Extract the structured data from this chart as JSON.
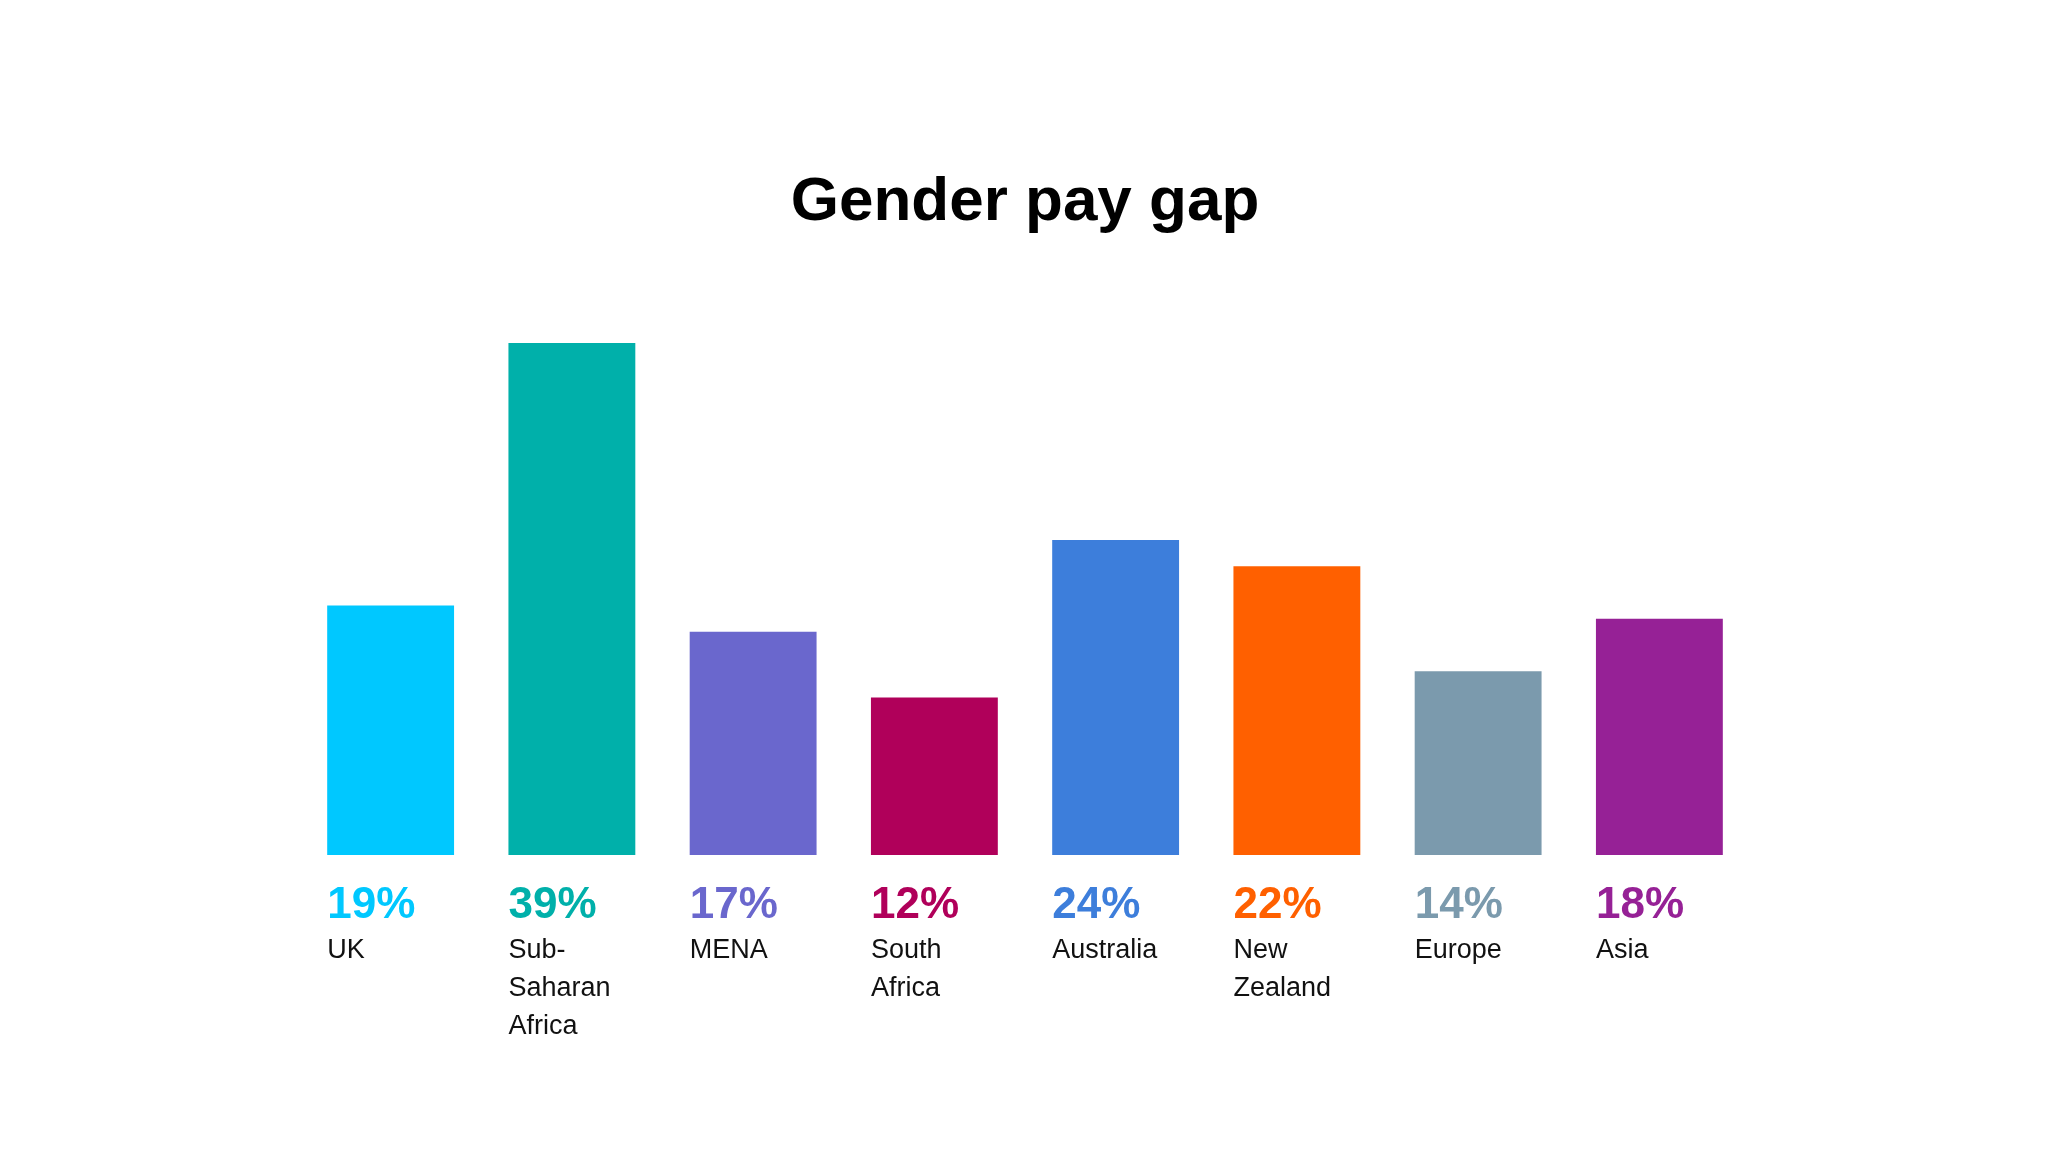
{
  "chart_data": {
    "type": "bar",
    "title": "Gender pay gap",
    "categories": [
      "UK",
      "Sub-Saharan Africa",
      "MENA",
      "South Africa",
      "Australia",
      "New Zealand",
      "Europe",
      "Asia"
    ],
    "values": [
      19,
      39,
      17,
      12,
      24,
      22,
      14,
      18
    ],
    "value_labels": [
      "19%",
      "39%",
      "17%",
      "12%",
      "24%",
      "22%",
      "14%",
      "18%"
    ],
    "colors": [
      "#00c8ff",
      "#00b0aa",
      "#6a67cd",
      "#b0005a",
      "#3d7edb",
      "#ff6000",
      "#7b9aad",
      "#962196"
    ]
  }
}
